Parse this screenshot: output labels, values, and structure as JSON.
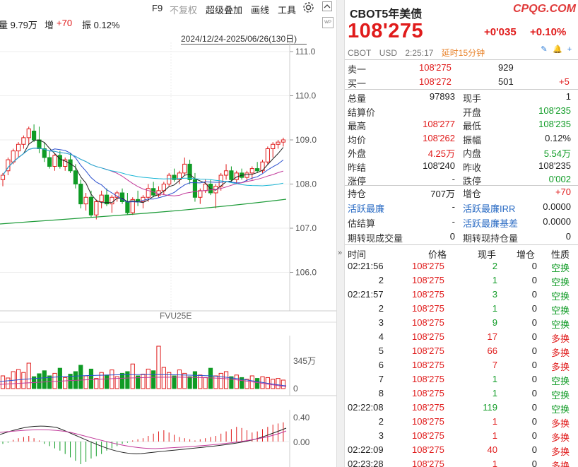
{
  "toolbar": {
    "f9": "F9",
    "no_restore": "不复权",
    "overlay": "超级叠加",
    "draw": "画线",
    "tools": "工具",
    "next": ">"
  },
  "info": {
    "vol": "量 9.79万",
    "inc_label": "增",
    "inc_value": "+70",
    "amp": "振 0.12%"
  },
  "range": "2024/12/24-2025/06/26(130日)",
  "y_axis": [
    "111.0",
    "110.0",
    "109.0",
    "108.0",
    "107.0",
    "106.0"
  ],
  "volume_axis": [
    "345万",
    "0"
  ],
  "macd_axis": [
    "0.40",
    "0.00"
  ],
  "sub_label": "FVU25E",
  "quote": {
    "title": "CBOT5年美债",
    "brand": "CPQG.COM",
    "price": "108'275",
    "change": "+0'035",
    "change_pct": "+0.10%",
    "exchange": "CBOT",
    "currency": "USD",
    "time": "2:25:17",
    "delay": "延时15分钟"
  },
  "book": [
    {
      "label": "卖一",
      "price": "108'275",
      "qty": "929",
      "extra": ""
    },
    {
      "label": "买一",
      "price": "108'272",
      "qty": "501",
      "extra": "+5"
    }
  ],
  "stats": [
    {
      "l1": "总量",
      "v1": "97893",
      "c1": "dark",
      "l2": "现手",
      "v2": "1",
      "c2": "dark"
    },
    {
      "l1": "结算价",
      "v1": "",
      "c1": "dark",
      "l2": "开盘",
      "v2": "108'235",
      "c2": "green"
    },
    {
      "l1": "最高",
      "v1": "108'277",
      "c1": "red",
      "l2": "最低",
      "v2": "108'235",
      "c2": "green"
    },
    {
      "l1": "均价",
      "v1": "108'262",
      "c1": "red",
      "l2": "振幅",
      "v2": "0.12%",
      "c2": "dark"
    },
    {
      "l1": "外盘",
      "v1": "4.25万",
      "c1": "red",
      "l2": "内盘",
      "v2": "5.54万",
      "c2": "green"
    },
    {
      "l1": "昨结",
      "v1": "108'240",
      "c1": "dark",
      "l2": "昨收",
      "v2": "108'235",
      "c2": "dark"
    },
    {
      "l1": "涨停",
      "v1": "-",
      "c1": "dark",
      "l2": "跌停",
      "v2": "0'002",
      "c2": "green"
    }
  ],
  "stats2": [
    {
      "l1": "持仓",
      "v1": "707万",
      "l2": "增仓",
      "v2": "+70",
      "blue1": false,
      "blue2": false,
      "c2": "red"
    },
    {
      "l1": "活跃最廉",
      "v1": "-",
      "l2": "活跃最廉IRR",
      "v2": "0.0000",
      "blue1": true,
      "blue2": true,
      "c2": "dark"
    },
    {
      "l1": "估结算",
      "v1": "-",
      "l2": "活跃最廉基差",
      "v2": "0.0000",
      "blue1": false,
      "blue2": true,
      "c2": "dark"
    },
    {
      "l1": "期转现成交量",
      "v1": "0",
      "l2": "期转现持仓量",
      "v2": "0",
      "blue1": false,
      "blue2": false,
      "c2": "dark"
    }
  ],
  "trades_header": {
    "time": "时间",
    "price": "价格",
    "qty": "现手",
    "oi": "增仓",
    "type": "性质"
  },
  "trades": [
    {
      "time": "02:21:56",
      "price": "108'275",
      "qty": "2",
      "oi": "0",
      "type": "空换",
      "qc": "green",
      "tc": "green"
    },
    {
      "time": "2",
      "price": "108'275",
      "qty": "1",
      "oi": "0",
      "type": "空换",
      "qc": "green",
      "tc": "green"
    },
    {
      "time": "02:21:57",
      "price": "108'275",
      "qty": "3",
      "oi": "0",
      "type": "空换",
      "qc": "green",
      "tc": "green"
    },
    {
      "time": "2",
      "price": "108'275",
      "qty": "1",
      "oi": "0",
      "type": "空换",
      "qc": "green",
      "tc": "green"
    },
    {
      "time": "3",
      "price": "108'275",
      "qty": "9",
      "oi": "0",
      "type": "空换",
      "qc": "green",
      "tc": "green"
    },
    {
      "time": "4",
      "price": "108'275",
      "qty": "17",
      "oi": "0",
      "type": "多换",
      "qc": "red",
      "tc": "red"
    },
    {
      "time": "5",
      "price": "108'275",
      "qty": "66",
      "oi": "0",
      "type": "多换",
      "qc": "red",
      "tc": "red"
    },
    {
      "time": "6",
      "price": "108'275",
      "qty": "7",
      "oi": "0",
      "type": "多换",
      "qc": "red",
      "tc": "red"
    },
    {
      "time": "7",
      "price": "108'275",
      "qty": "1",
      "oi": "0",
      "type": "空换",
      "qc": "green",
      "tc": "green"
    },
    {
      "time": "8",
      "price": "108'275",
      "qty": "1",
      "oi": "0",
      "type": "空换",
      "qc": "green",
      "tc": "green"
    },
    {
      "time": "02:22:08",
      "price": "108'275",
      "qty": "119",
      "oi": "0",
      "type": "空换",
      "qc": "green",
      "tc": "green"
    },
    {
      "time": "2",
      "price": "108'275",
      "qty": "1",
      "oi": "0",
      "type": "多换",
      "qc": "red",
      "tc": "red"
    },
    {
      "time": "3",
      "price": "108'275",
      "qty": "1",
      "oi": "0",
      "type": "多换",
      "qc": "red",
      "tc": "red"
    },
    {
      "time": "02:22:09",
      "price": "108'275",
      "qty": "40",
      "oi": "0",
      "type": "多换",
      "qc": "red",
      "tc": "red"
    },
    {
      "time": "02:23:28",
      "price": "108'275",
      "qty": "1",
      "oi": "0",
      "type": "多换",
      "qc": "red",
      "tc": "red"
    }
  ],
  "icons": [
    "edit-icon",
    "bell-icon",
    "add-icon",
    "settings-icon",
    "scroll-up-icon",
    "wp-icon"
  ],
  "colors": {
    "up": "#e01b1b",
    "down": "#0f9b25",
    "accent": "#2b6cc4",
    "delay": "#e8822a"
  }
}
